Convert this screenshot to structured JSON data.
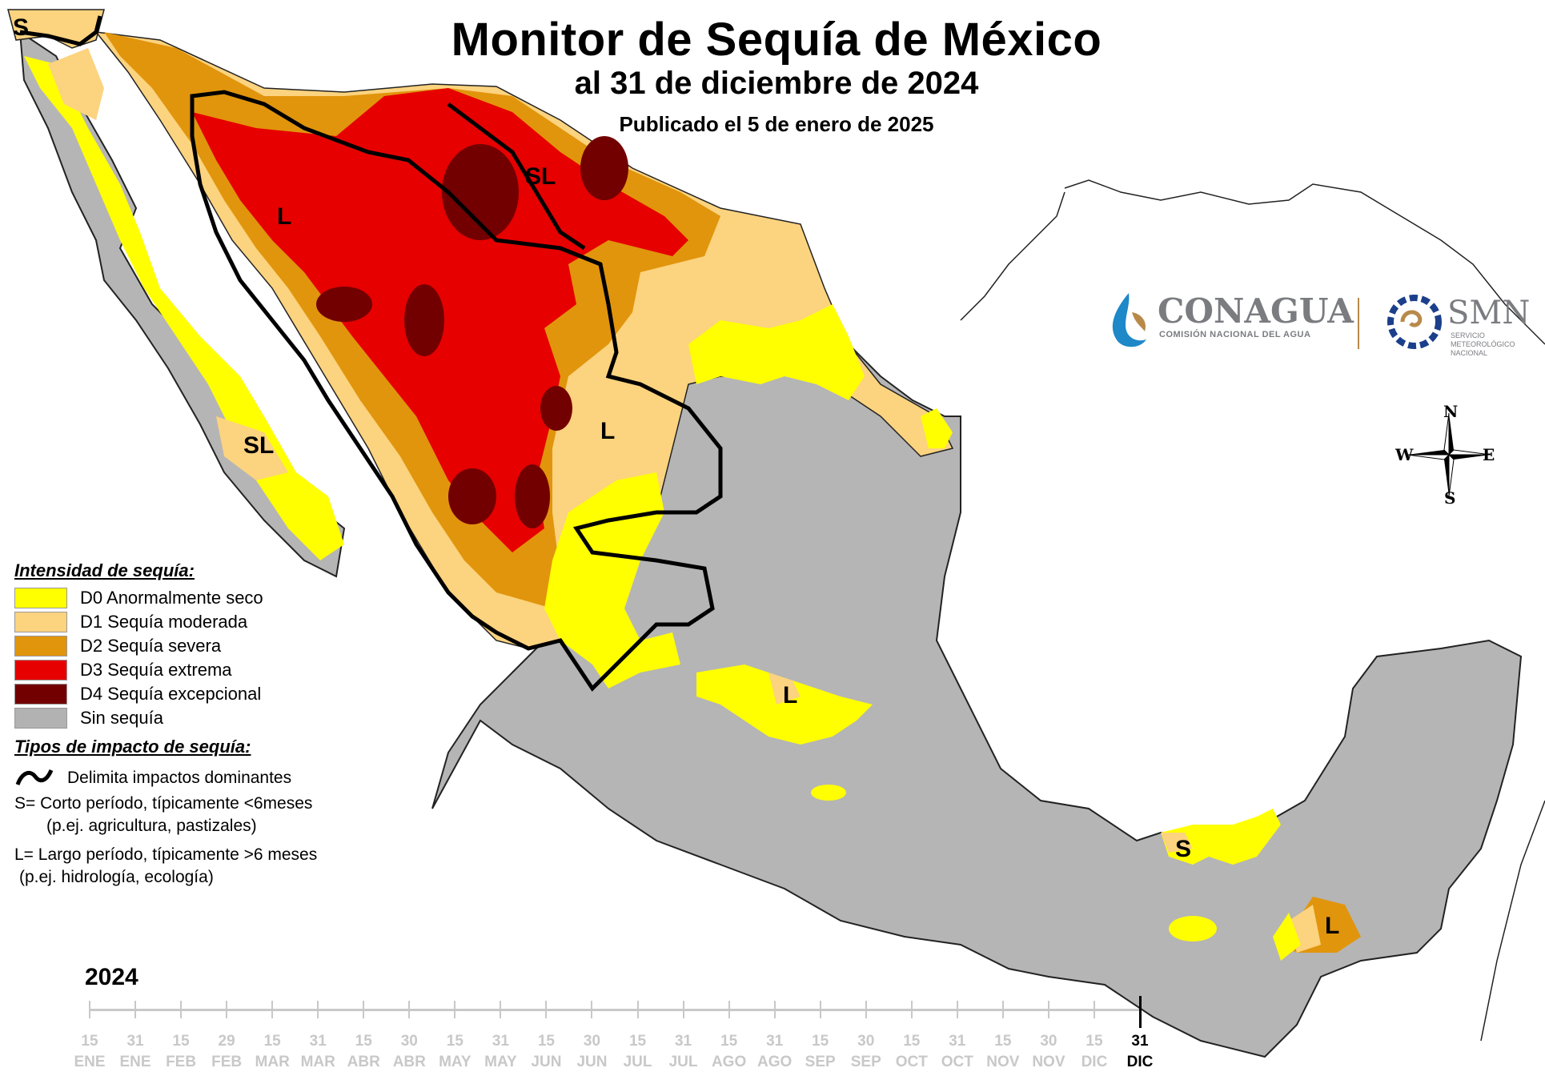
{
  "header": {
    "title": "Monitor de Sequía de México",
    "subtitle": "al 31 de diciembre de 2024",
    "published": "Publicado el 5 de enero de 2025"
  },
  "logos": {
    "conagua_name": "CONAGUA",
    "conagua_sub": "COMISIÓN NACIONAL DEL AGUA",
    "smn_name": "SMN",
    "smn_sub": [
      "SERVICIO",
      "METEOROLÓGICO",
      "NACIONAL"
    ]
  },
  "compass": {
    "n": "N",
    "s": "S",
    "e": "E",
    "w": "W",
    "icon": "compass-rose-icon"
  },
  "map_labels": [
    "S",
    "SL",
    "L",
    "SL",
    "L",
    "L",
    "S",
    "L"
  ],
  "legend": {
    "intensity_title": "Intensidad de sequía:",
    "categories": [
      {
        "label": "D0 Anormalmente seco",
        "color": "#ffff00"
      },
      {
        "label": "D1 Sequía moderada",
        "color": "#fcd37f"
      },
      {
        "label": "D2 Sequía severa",
        "color": "#e1950c"
      },
      {
        "label": "D3 Sequía extrema",
        "color": "#e60000"
      },
      {
        "label": "D4 Sequía excepcional",
        "color": "#730000"
      },
      {
        "label": "Sin sequía",
        "color": "#b2b2b2"
      }
    ],
    "impact_title": "Tipos de impacto de sequía:",
    "impact_line_label": "Delimita impactos dominantes",
    "impact_s_line1": "S= Corto período, típicamente <6meses",
    "impact_s_line2": "(p.ej. agricultura, pastizales)",
    "impact_l_line1": "L= Largo período, típicamente >6 meses",
    "impact_l_line2": "(p.ej. hidrología, ecología)"
  },
  "timeline": {
    "year": "2024",
    "ticks": [
      {
        "day": "15",
        "month": "ENE"
      },
      {
        "day": "31",
        "month": "ENE"
      },
      {
        "day": "15",
        "month": "FEB"
      },
      {
        "day": "29",
        "month": "FEB"
      },
      {
        "day": "15",
        "month": "MAR"
      },
      {
        "day": "31",
        "month": "MAR"
      },
      {
        "day": "15",
        "month": "ABR"
      },
      {
        "day": "30",
        "month": "ABR"
      },
      {
        "day": "15",
        "month": "MAY"
      },
      {
        "day": "31",
        "month": "MAY"
      },
      {
        "day": "15",
        "month": "JUN"
      },
      {
        "day": "30",
        "month": "JUN"
      },
      {
        "day": "15",
        "month": "JUL"
      },
      {
        "day": "31",
        "month": "JUL"
      },
      {
        "day": "15",
        "month": "AGO"
      },
      {
        "day": "31",
        "month": "AGO"
      },
      {
        "day": "15",
        "month": "SEP"
      },
      {
        "day": "30",
        "month": "SEP"
      },
      {
        "day": "15",
        "month": "OCT"
      },
      {
        "day": "31",
        "month": "OCT"
      },
      {
        "day": "15",
        "month": "NOV"
      },
      {
        "day": "30",
        "month": "NOV"
      },
      {
        "day": "15",
        "month": "DIC"
      },
      {
        "day": "31",
        "month": "DIC"
      }
    ],
    "active_index": 23
  }
}
